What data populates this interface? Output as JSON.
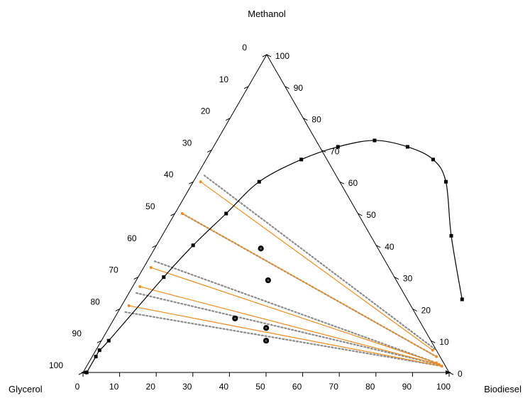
{
  "chart_data": {
    "type": "scatter",
    "subtype": "ternary",
    "vertex_labels": {
      "top": "Methanol",
      "left": "Glycerol",
      "right": "Biodiesel"
    },
    "axes": {
      "bottom": {
        "component": "Biodiesel",
        "ticks": [
          "0",
          "10",
          "20",
          "30",
          "40",
          "50",
          "60",
          "70",
          "80",
          "90",
          "100"
        ]
      },
      "right": {
        "component": "Methanol",
        "ticks": [
          "0",
          "10",
          "20",
          "30",
          "40",
          "50",
          "60",
          "70",
          "80",
          "90",
          "100"
        ]
      },
      "left": {
        "component": "Glycerol",
        "ticks": [
          "0",
          "10",
          "20",
          "30",
          "40",
          "50",
          "60",
          "70",
          "80",
          "90",
          "100"
        ]
      }
    },
    "binodal_curve": {
      "points": [
        {
          "biodiesel": 1,
          "methanol": 0
        },
        {
          "biodiesel": 1,
          "methanol": 5
        },
        {
          "biodiesel": 1,
          "methanol": 7
        },
        {
          "biodiesel": 2,
          "methanol": 10
        },
        {
          "biodiesel": 7,
          "methanol": 30
        },
        {
          "biodiesel": 10,
          "methanol": 40
        },
        {
          "biodiesel": 14,
          "methanol": 50
        },
        {
          "biodiesel": 18,
          "methanol": 60
        },
        {
          "biodiesel": 26,
          "methanol": 67
        },
        {
          "biodiesel": 34,
          "methanol": 71
        },
        {
          "biodiesel": 43,
          "methanol": 73
        },
        {
          "biodiesel": 53,
          "methanol": 71
        },
        {
          "biodiesel": 62,
          "methanol": 67
        },
        {
          "biodiesel": 69,
          "methanol": 60
        },
        {
          "biodiesel": 79,
          "methanol": 43
        },
        {
          "biodiesel": 92,
          "methanol": 23
        }
      ]
    },
    "tie_lines_experimental": {
      "color": "#f08c1e",
      "lines": [
        {
          "glycerol_phase": {
            "biodiesel": 2,
            "methanol": 60
          },
          "biodiesel_phase": {
            "biodiesel": 92,
            "methanol": 7
          }
        },
        {
          "glycerol_phase": {
            "biodiesel": 2,
            "methanol": 50
          },
          "biodiesel_phase": {
            "biodiesel": 94,
            "methanol": 5
          }
        },
        {
          "glycerol_phase": {
            "biodiesel": 2,
            "methanol": 33
          },
          "biodiesel_phase": {
            "biodiesel": 95,
            "methanol": 3
          }
        },
        {
          "glycerol_phase": {
            "biodiesel": 2,
            "methanol": 27
          },
          "biodiesel_phase": {
            "biodiesel": 96,
            "methanol": 2.5
          }
        },
        {
          "glycerol_phase": {
            "biodiesel": 2,
            "methanol": 21
          },
          "biodiesel_phase": {
            "biodiesel": 97,
            "methanol": 2
          }
        }
      ]
    },
    "tie_lines_calculated": {
      "color": "#8c8c8c",
      "style": "dotted",
      "lines": [
        {
          "glycerol_phase": {
            "biodiesel": 2,
            "methanol": 62
          },
          "biodiesel_phase": {
            "biodiesel": 93,
            "methanol": 7
          }
        },
        {
          "glycerol_phase": {
            "biodiesel": 2,
            "methanol": 50
          },
          "biodiesel_phase": {
            "biodiesel": 94,
            "methanol": 5
          }
        },
        {
          "glycerol_phase": {
            "biodiesel": 2,
            "methanol": 35
          },
          "biodiesel_phase": {
            "biodiesel": 95,
            "methanol": 3
          }
        },
        {
          "glycerol_phase": {
            "biodiesel": 2,
            "methanol": 25
          },
          "biodiesel_phase": {
            "biodiesel": 96,
            "methanol": 2.5
          }
        },
        {
          "glycerol_phase": {
            "biodiesel": 2,
            "methanol": 19
          },
          "biodiesel_phase": {
            "biodiesel": 97,
            "methanol": 2
          }
        }
      ]
    },
    "feed_points": [
      {
        "biodiesel": 29,
        "methanol": 39
      },
      {
        "biodiesel": 36,
        "methanol": 29
      },
      {
        "biodiesel": 33,
        "methanol": 17
      },
      {
        "biodiesel": 43,
        "methanol": 14
      },
      {
        "biodiesel": 45,
        "methanol": 10
      }
    ],
    "grid": false,
    "legend": "none"
  }
}
